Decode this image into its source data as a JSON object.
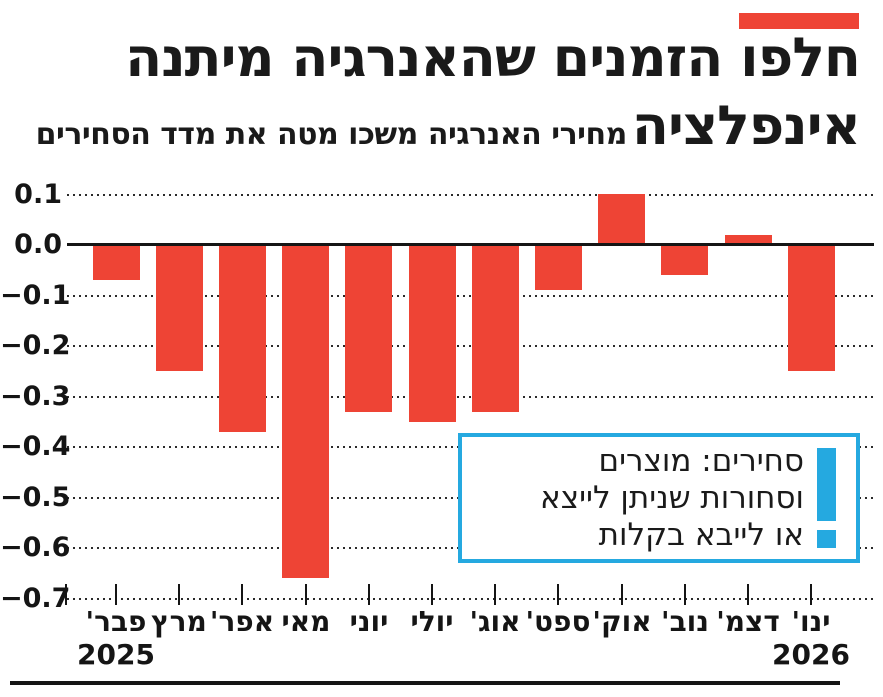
{
  "brand": {
    "accent_color": "#EE4435",
    "note_border_color": "#25A9E0"
  },
  "header": {
    "headline_line1": "חלפו הזמנים שהאנרגיה מיתנה",
    "headline_line2": "אינפלציה",
    "subtitle": "מחירי האנרגיה משכו מטה את מדד הסחירים"
  },
  "note": {
    "lines": [
      "סחירים: מוצרים",
      "וסחורות שניתן לייצא",
      "או לייבא בקלות"
    ],
    "icon": "exclamation-icon"
  },
  "chart_data": {
    "type": "bar",
    "title": "חלפו הזמנים שהאנרגיה מיתנה אינפלציה",
    "subtitle": "מחירי האנרגיה משכו מטה את מדד הסחירים",
    "categories": [
      "פבר'",
      "מרץ",
      "אפר'",
      "מאי",
      "יוני",
      "יולי",
      "אוג'",
      "ספט'",
      "אוק'",
      "נוב'",
      "דצמ'",
      "ינו'"
    ],
    "values": [
      -0.07,
      -0.25,
      -0.37,
      -0.66,
      -0.33,
      -0.35,
      -0.33,
      -0.09,
      0.1,
      -0.06,
      0.02,
      -0.25
    ],
    "year_labels": [
      {
        "text": "2025",
        "index": 0
      },
      {
        "text": "2026",
        "index": 11
      }
    ],
    "bar_color": "#EE4435",
    "ylim": [
      -0.7,
      0.1
    ],
    "yticks": [
      0.1,
      0.0,
      -0.1,
      -0.2,
      -0.3,
      -0.4,
      -0.5,
      -0.6,
      -0.7
    ],
    "ytick_labels": [
      "0.1",
      "0.0",
      "−0.1",
      "−0.2",
      "−0.3",
      "−0.4",
      "−0.5",
      "−0.6",
      "−0.7"
    ],
    "grid": "horizontal dotted, solid zero axis",
    "legend": "none",
    "direction": "time flows left-to-right, Feb 2025 to Jan 2026"
  }
}
